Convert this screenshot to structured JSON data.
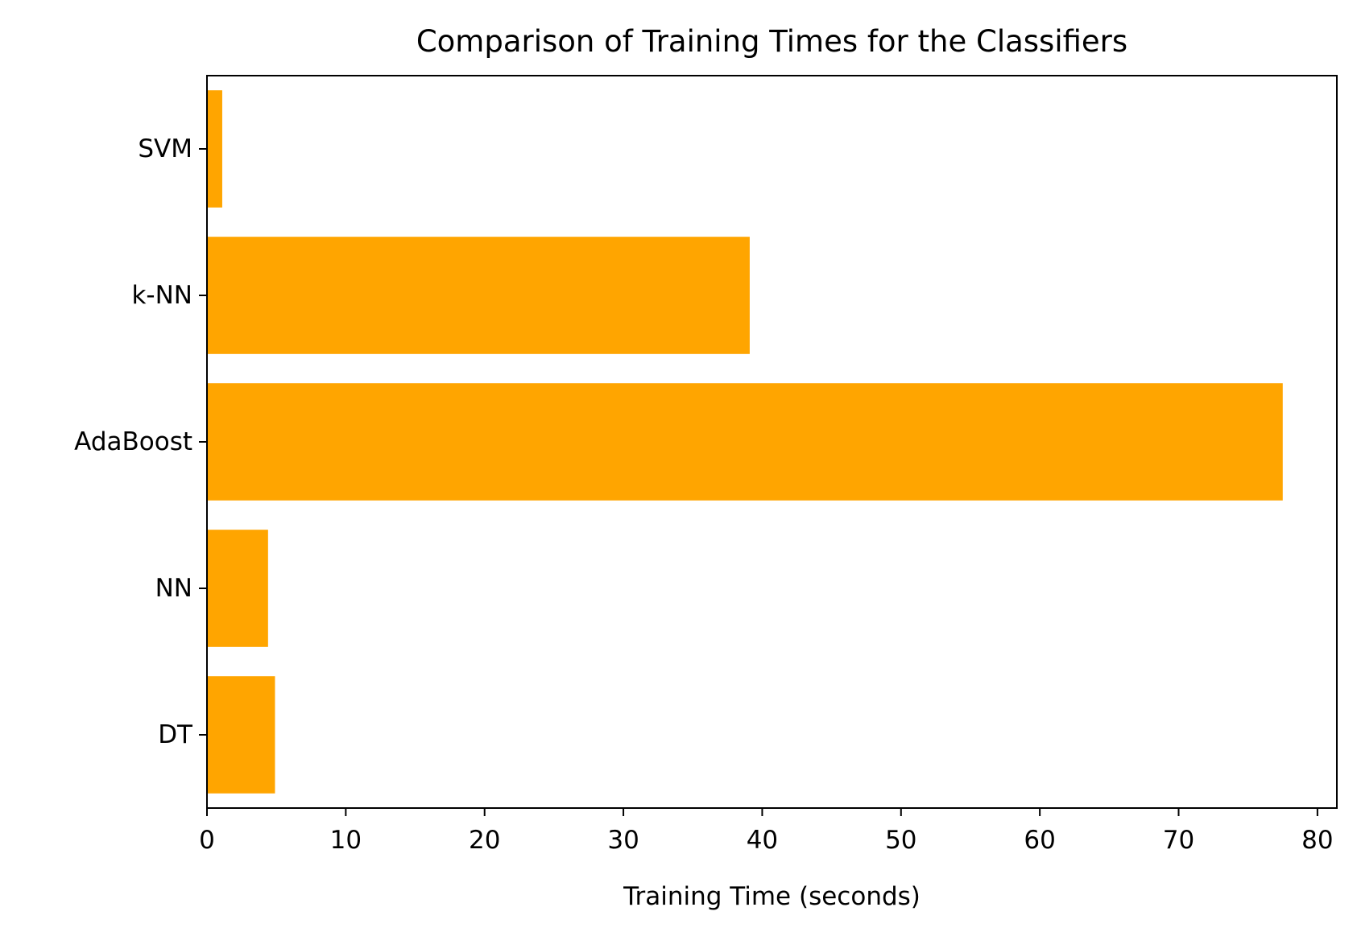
{
  "chart_data": {
    "type": "bar",
    "orientation": "horizontal",
    "title": "Comparison of Training Times for the Classifiers",
    "xlabel": "Training Time (seconds)",
    "ylabel": "",
    "categories": [
      "DT",
      "NN",
      "AdaBoost",
      "k-NN",
      "SVM"
    ],
    "values": [
      4.9,
      4.4,
      77.5,
      39.1,
      1.1
    ],
    "xlim": [
      0,
      81.4
    ],
    "xticks": [
      0,
      10,
      20,
      30,
      40,
      50,
      60,
      70,
      80
    ],
    "bar_color": "#ffa500",
    "grid": false,
    "legend": "none"
  }
}
